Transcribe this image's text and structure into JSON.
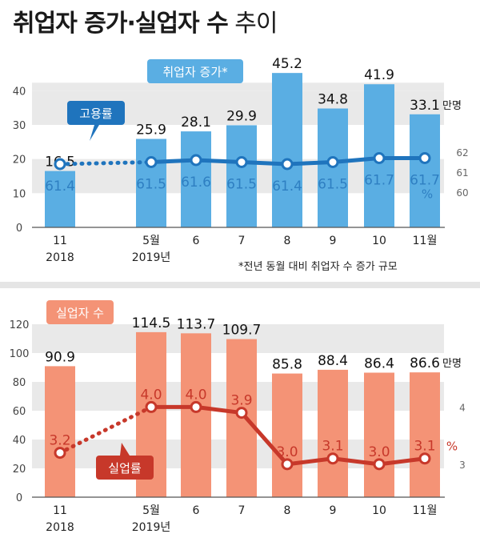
{
  "title": {
    "main": "취업자 증가·실업자 수",
    "sub": " 추이"
  },
  "footnote": "*전년 동월 대비 취업자 수 증가 규모",
  "chart_data": [
    {
      "type": "bar",
      "series_label": "취업자 증가*",
      "line_label": "고용률",
      "unit_bar": "만명",
      "unit_line": "%",
      "categories": [
        "11",
        "5월",
        "6",
        "7",
        "8",
        "9",
        "10",
        "11월"
      ],
      "years": {
        "0": "2018",
        "1": "2019년"
      },
      "values": [
        16.5,
        25.9,
        28.1,
        29.9,
        45.2,
        34.8,
        41.9,
        33.1
      ],
      "line_values": [
        61.4,
        61.5,
        61.6,
        61.5,
        61.4,
        61.5,
        61.7,
        61.7
      ],
      "ylim": [
        0,
        45
      ],
      "yticks": [
        0,
        10,
        20,
        30,
        40
      ],
      "y2ticks": [
        60,
        61,
        62
      ],
      "y2lim": [
        60,
        62
      ],
      "colors": {
        "bar": "#5aaee3",
        "line": "#1f74bd",
        "band": "#e9e9e9"
      }
    },
    {
      "type": "bar",
      "series_label": "실업자 수",
      "line_label": "실업률",
      "unit_bar": "만명",
      "unit_line": "%",
      "categories": [
        "11",
        "5월",
        "6",
        "7",
        "8",
        "9",
        "10",
        "11월"
      ],
      "years": {
        "0": "2018",
        "1": "2019년"
      },
      "values": [
        90.9,
        114.5,
        113.7,
        109.7,
        85.8,
        88.4,
        86.4,
        86.6
      ],
      "line_values": [
        3.2,
        4.0,
        4.0,
        3.9,
        3.0,
        3.1,
        3.0,
        3.1
      ],
      "ylim": [
        0,
        120
      ],
      "yticks": [
        0,
        20,
        40,
        60,
        80,
        100,
        120
      ],
      "y2ticks": [
        3,
        4
      ],
      "y2lim": [
        2.9,
        4.3
      ],
      "colors": {
        "bar": "#f49376",
        "line": "#c7382a",
        "band": "#e9e9e9"
      }
    }
  ]
}
